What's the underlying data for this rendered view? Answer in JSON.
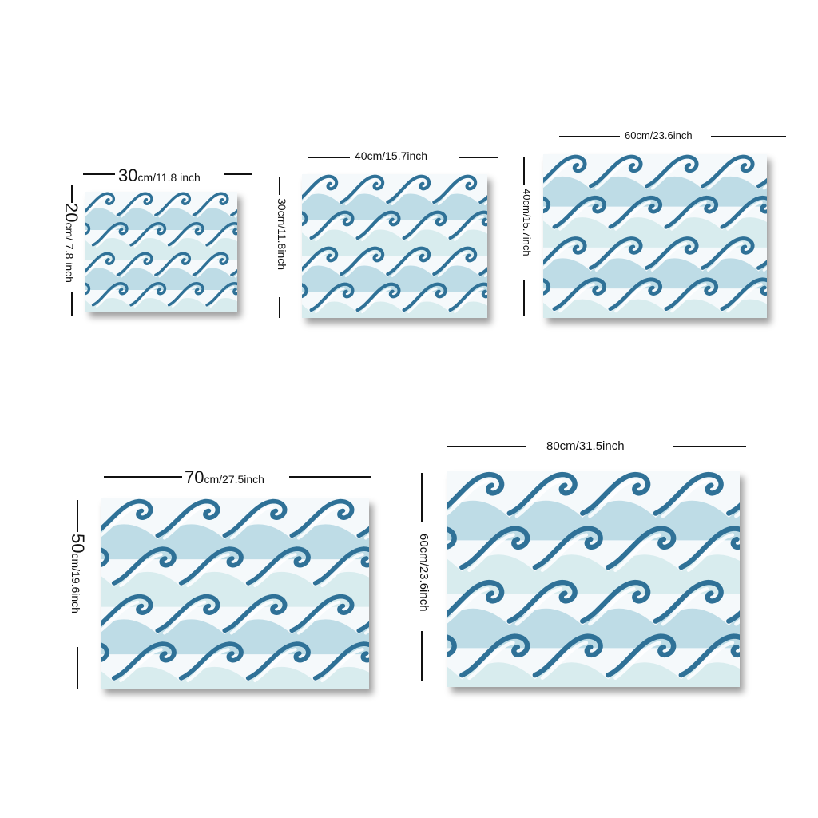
{
  "sizes": [
    {
      "width": {
        "num": "30",
        "unit": "cm/11.8 inch"
      },
      "height": {
        "num": "20",
        "unit": "cm/ 7.8 inch"
      }
    },
    {
      "width": {
        "text": "40cm/15.7inch"
      },
      "height": {
        "text": "30cm/11.8inch"
      }
    },
    {
      "width": {
        "text": "60cm/23.6inch"
      },
      "height": {
        "text": "40cm/15.7inch"
      }
    },
    {
      "width": {
        "num": "70",
        "unit": "cm/27.5inch"
      },
      "height": {
        "num": "50",
        "unit": "cm/19.6inch"
      }
    },
    {
      "width": {
        "text": "80cm/31.5inch"
      },
      "height": {
        "text": "60cm/23.6inch"
      }
    }
  ],
  "colors": {
    "wave_dark": "#2f7197",
    "wave_mid": "#8fc4d6",
    "wave_light": "#bfe1e3",
    "foam": "#ffffff",
    "ink": "#111111"
  }
}
